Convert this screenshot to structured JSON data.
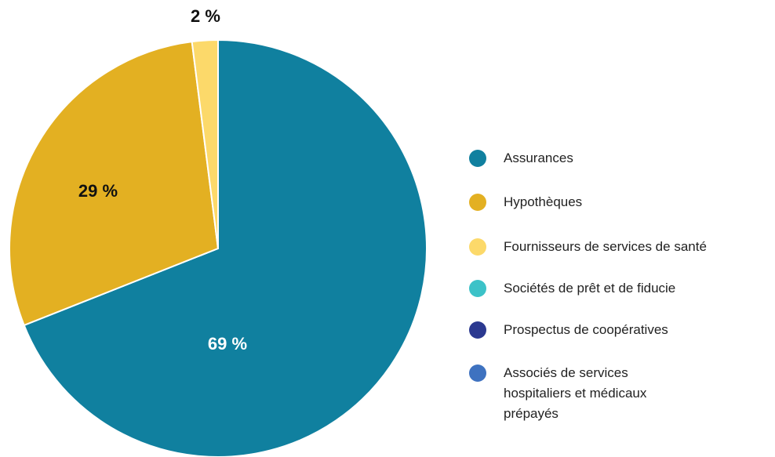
{
  "chart_data": {
    "type": "pie",
    "categories": [
      "Assurances",
      "Hypothèques",
      "Fournisseurs de services de santé",
      "Sociétés de prêt et de fiducie",
      "Prospectus de coopératives",
      "Associés de services hospitaliers et médicaux prépayés"
    ],
    "values": [
      69,
      29,
      2,
      0,
      0,
      0
    ],
    "value_labels": [
      "69 %",
      "29 %",
      "2 %",
      null,
      null,
      null
    ],
    "colors": [
      "#10809f",
      "#e3b022",
      "#fcd96a",
      "#3cc2c8",
      "#2b3990",
      "#3e72c0"
    ],
    "legend": "right"
  }
}
